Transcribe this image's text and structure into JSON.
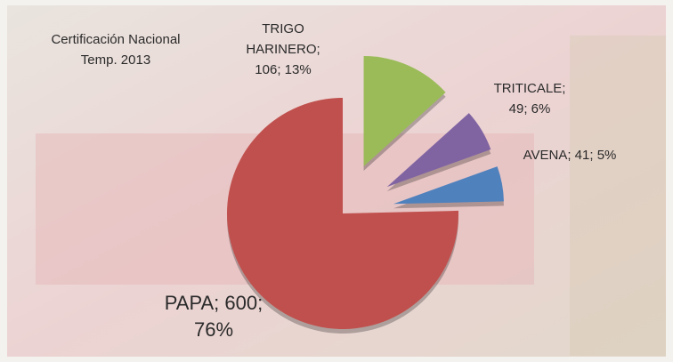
{
  "chart_data": {
    "type": "pie",
    "title_lines": [
      "Certificación Nacional",
      "Temp. 2013"
    ],
    "values": [
      106,
      49,
      41,
      600
    ],
    "value_labels": [
      [
        "TRIGO",
        "HARINERO;",
        "106; 13%"
      ],
      [
        "TRITICALE;",
        "49; 6%"
      ],
      [
        "AVENA; 41; 5%"
      ],
      [
        "PAPA; 600;",
        "76%"
      ]
    ],
    "colors": [
      "#9bbb59",
      "#8064a2",
      "#4f81bd",
      "#c0504d"
    ],
    "exploded": [
      true,
      true,
      true,
      false
    ]
  }
}
